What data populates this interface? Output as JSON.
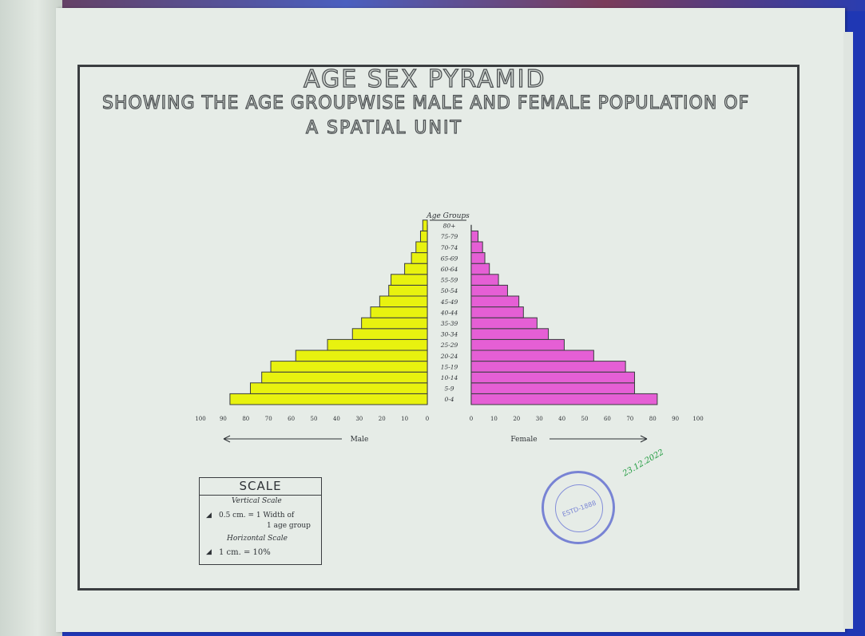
{
  "title": "AGE SEX PYRAMID",
  "subtitle_line1": "SHOWING THE AGE GROUPWISE MALE AND FEMALE POPULATION OF",
  "subtitle_line2": "A SPATIAL UNIT",
  "chart_data": {
    "type": "bar",
    "orientation": "horizontal-pyramid",
    "category_label": "Age Groups",
    "categories": [
      "0-4",
      "5-9",
      "10-14",
      "15-19",
      "20-24",
      "25-29",
      "30-34",
      "35-39",
      "40-44",
      "45-49",
      "50-54",
      "55-59",
      "60-64",
      "65-69",
      "70-74",
      "75-79",
      "80+"
    ],
    "series": [
      {
        "name": "Male",
        "color": "#e8f20f",
        "values": [
          87,
          78,
          73,
          69,
          58,
          44,
          33,
          29,
          25,
          21,
          17,
          16,
          10,
          7,
          5,
          3,
          2
        ]
      },
      {
        "name": "Female",
        "color": "#e55fd5",
        "values": [
          82,
          72,
          72,
          68,
          54,
          41,
          34,
          29,
          23,
          21,
          16,
          12,
          8,
          6,
          5,
          3,
          0
        ]
      }
    ],
    "male_axis_ticks": [
      "100",
      "90",
      "80",
      "70",
      "60",
      "50",
      "40",
      "30",
      "20",
      "10",
      "0"
    ],
    "female_axis_ticks": [
      "0",
      "10",
      "20",
      "30",
      "40",
      "50",
      "60",
      "70",
      "80",
      "90",
      "100"
    ],
    "xlim": [
      0,
      100
    ]
  },
  "scale": {
    "heading": "SCALE",
    "vertical_heading": "Vertical Scale",
    "vertical_line1": "0.5 cm. = 1 Width of",
    "vertical_line2": "1 age group",
    "horizontal_heading": "Horizontal Scale",
    "horizontal_line": "1 cm. = 10%"
  },
  "stamp_text": "ESTD-1888",
  "signature": "23.12.2022"
}
